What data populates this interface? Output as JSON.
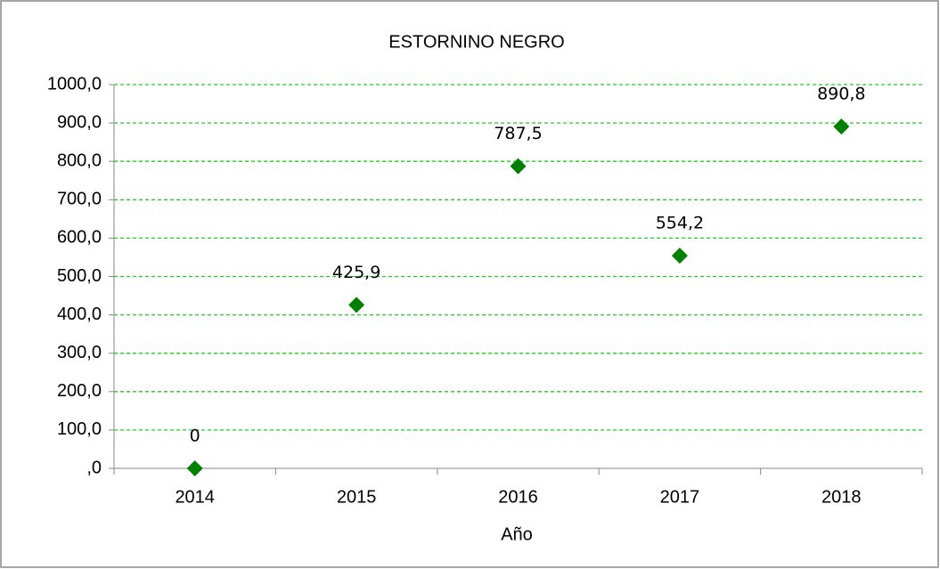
{
  "chart_data": {
    "type": "scatter",
    "title": "ESTORNINO  NEGRO",
    "x_label": "Año",
    "categories": [
      "2014",
      "2015",
      "2016",
      "2017",
      "2018"
    ],
    "values": [
      0,
      425.9,
      787.5,
      554.2,
      890.8
    ],
    "value_labels": [
      "0",
      "425,9",
      "787,5",
      "554,2",
      "890,8"
    ],
    "color": "#008000",
    "ylim": [
      0,
      1000
    ],
    "yticks": [
      {
        "value": 0,
        "label": ",0"
      },
      {
        "value": 100,
        "label": "100,0"
      },
      {
        "value": 200,
        "label": "200,0"
      },
      {
        "value": 300,
        "label": "300,0"
      },
      {
        "value": 400,
        "label": "400,0"
      },
      {
        "value": 500,
        "label": "500,0"
      },
      {
        "value": 600,
        "label": "600,0"
      },
      {
        "value": 700,
        "label": "700,0"
      },
      {
        "value": 800,
        "label": "800,0"
      },
      {
        "value": 900,
        "label": "900,0"
      },
      {
        "value": 1000,
        "label": "1000,0"
      }
    ],
    "grid": true,
    "grid_color": "#22cc22"
  }
}
